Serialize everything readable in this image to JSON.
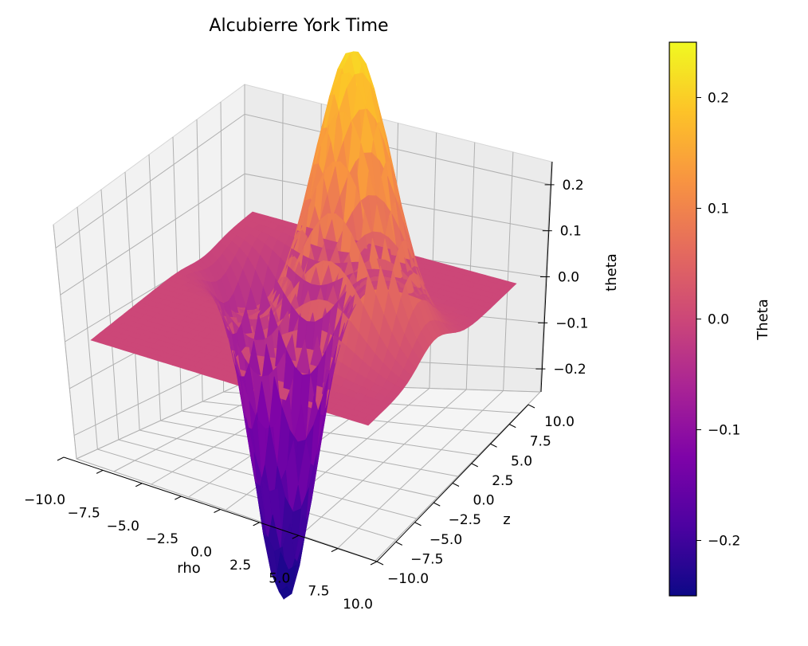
{
  "chart_data": {
    "type": "surface3d",
    "title": "Alcubierre York Time",
    "xlabel": "rho",
    "ylabel": "z",
    "zlabel": "theta",
    "xlim": [
      -10,
      10
    ],
    "ylim": [
      -10,
      10
    ],
    "zlim": [
      -0.25,
      0.25
    ],
    "x_ticks": [
      "−10.0",
      "−7.5",
      "−5.0",
      "−2.5",
      "0.0",
      "2.5",
      "5.0",
      "7.5",
      "10.0"
    ],
    "y_ticks": [
      "−10.0",
      "−7.5",
      "−5.0",
      "−2.5",
      "0.0",
      "2.5",
      "5.0",
      "7.5",
      "10.0"
    ],
    "z_ticks": [
      "−0.2",
      "−0.1",
      "0.0",
      "0.1",
      "0.2"
    ],
    "grid": true,
    "colormap": "plasma",
    "colorbar": {
      "label": "Theta",
      "range": [
        -0.25,
        0.25
      ],
      "ticks": [
        "0.2",
        "0.1",
        "0.0",
        "−0.1",
        "−0.2"
      ],
      "tick_values": [
        0.2,
        0.1,
        0.0,
        -0.1,
        -0.2
      ]
    },
    "surface": {
      "grid_points": 50,
      "peak": {
        "rho": -4,
        "z": -1,
        "theta": 0.22
      },
      "trough": {
        "rho": 4,
        "z": 4,
        "theta": -0.25
      },
      "baseline_theta": 0.0
    }
  }
}
